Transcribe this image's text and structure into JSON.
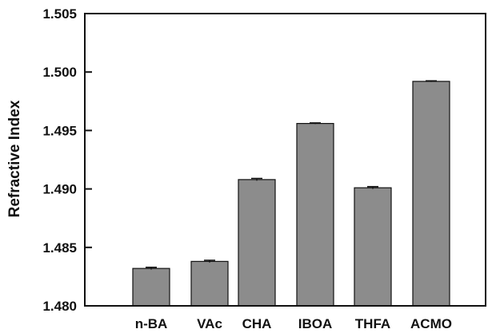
{
  "chart_data": {
    "type": "bar",
    "title": "",
    "xlabel": "",
    "ylabel": "Refractive Index",
    "categories": [
      "n-BA",
      "VAc",
      "CHA",
      "IBOA",
      "THFA",
      "ACMO"
    ],
    "values": [
      1.4832,
      1.4838,
      1.4908,
      1.4956,
      1.4901,
      1.4992
    ],
    "errors": [
      0.0001,
      0.0001,
      0.0001,
      5e-05,
      0.0001,
      5e-05
    ],
    "ylim": [
      1.48,
      1.505
    ],
    "yticks": [
      "1.480",
      "1.485",
      "1.490",
      "1.495",
      "1.500",
      "1.505"
    ],
    "grid": false,
    "colors": {
      "bar": "#8c8c8c",
      "bar_edge": "#111111",
      "axis": "#111111"
    }
  }
}
